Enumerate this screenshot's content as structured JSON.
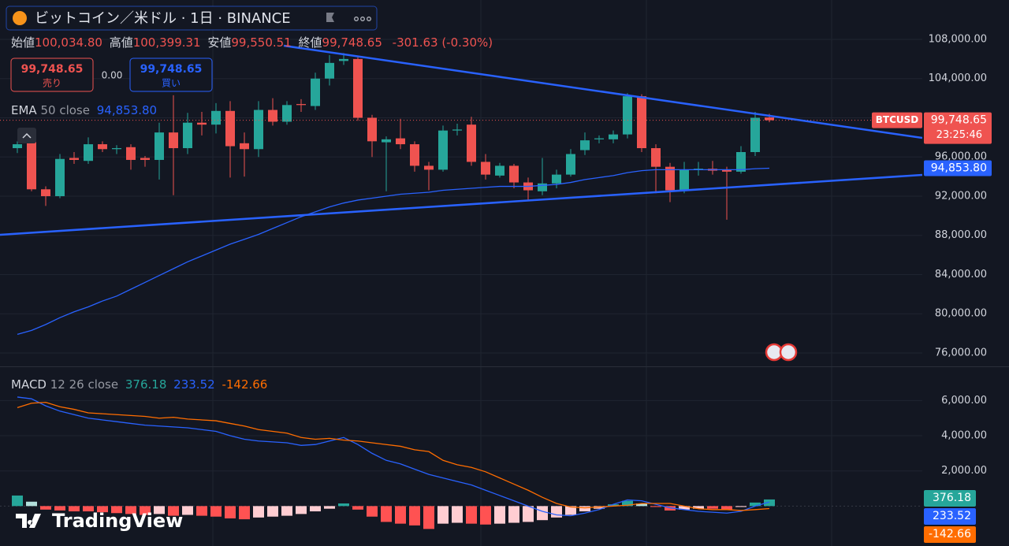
{
  "header": {
    "title": "ビットコイン／米ドル · 1日 · BINANCE",
    "ohlc": [
      {
        "label": "始値",
        "value": "100,034.80"
      },
      {
        "label": "高値",
        "value": "100,399.31"
      },
      {
        "label": "安値",
        "value": "99,550.51"
      },
      {
        "label": "終値",
        "value": "99,748.65"
      }
    ],
    "change": "-301.63 (-0.30%)"
  },
  "trade": {
    "sell_price": "99,748.65",
    "sell_label": "売り",
    "spread": "0.00",
    "buy_price": "99,748.65",
    "buy_label": "買い"
  },
  "branding": "TradingView",
  "chart_data": [
    {
      "type": "candlestick",
      "symbol": "BTCUSD",
      "countdown": "23:25:46",
      "last_label": "99,748.65",
      "color_up": "#26a69a",
      "color_down": "#ef5350",
      "open": [
        96900,
        97550,
        92700,
        92000,
        95900,
        95600,
        97300,
        96800,
        97000,
        95900,
        95700,
        98500,
        96900,
        99500,
        99300,
        100700,
        97400,
        96800,
        100800,
        99600,
        101400,
        101200,
        104000,
        105800,
        106000,
        100000,
        97500,
        97900,
        97300,
        95100,
        94700,
        98700,
        99300,
        95500,
        94100,
        95100,
        93400,
        92500,
        93300,
        94200,
        96700,
        97800,
        97800,
        98300,
        102200,
        96900,
        95000,
        92600,
        94700,
        94800,
        94700,
        94500,
        96500,
        100034.8
      ],
      "high": [
        97600,
        97900,
        93000,
        96300,
        96500,
        98000,
        97600,
        97200,
        97300,
        96100,
        99500,
        102300,
        100500,
        100600,
        101500,
        101700,
        98500,
        101700,
        102000,
        101700,
        101900,
        104600,
        106400,
        106600,
        106300,
        100300,
        98100,
        99900,
        97600,
        95500,
        99200,
        99400,
        100100,
        96300,
        95400,
        95300,
        93900,
        95900,
        94700,
        96800,
        98500,
        98200,
        98700,
        102500,
        102400,
        97300,
        95400,
        95500,
        95500,
        95600,
        95000,
        97100,
        100600,
        100399.31
      ],
      "low": [
        96400,
        92500,
        91000,
        91800,
        95300,
        95300,
        96500,
        96300,
        94700,
        95000,
        93700,
        92100,
        96300,
        98200,
        98400,
        93900,
        94000,
        96000,
        99200,
        99300,
        100600,
        100800,
        103300,
        105400,
        99700,
        96000,
        92500,
        96800,
        94500,
        92600,
        94500,
        98200,
        95100,
        93700,
        93900,
        92800,
        91500,
        92100,
        92800,
        94000,
        96200,
        97400,
        97400,
        97900,
        96500,
        92300,
        91400,
        92300,
        94100,
        94200,
        89600,
        94300,
        96100,
        99550.51
      ],
      "close": [
        97300,
        92700,
        92000,
        95800,
        95700,
        97300,
        96800,
        96900,
        95700,
        95700,
        98500,
        96900,
        99500,
        99300,
        100700,
        97100,
        96800,
        100800,
        99600,
        101300,
        101300,
        104000,
        105600,
        106000,
        100000,
        97600,
        97800,
        97300,
        95100,
        94700,
        98700,
        98800,
        95500,
        94200,
        95100,
        93400,
        92600,
        93300,
        94200,
        96300,
        97700,
        97900,
        98300,
        102200,
        96900,
        95000,
        92600,
        94700,
        94800,
        94600,
        94500,
        96500,
        100000,
        99748.65
      ],
      "series": [
        {
          "name": "EMA",
          "params": "50 close",
          "color": "#2962ff",
          "last_label": "94,853.80",
          "values": [
            77900,
            78300,
            78900,
            79600,
            80200,
            80700,
            81300,
            81800,
            82500,
            83200,
            83900,
            84600,
            85300,
            85900,
            86500,
            87100,
            87600,
            88100,
            88700,
            89300,
            89900,
            90400,
            90900,
            91300,
            91600,
            91800,
            92000,
            92200,
            92300,
            92400,
            92600,
            92700,
            92800,
            92900,
            93000,
            93000,
            93000,
            93100,
            93200,
            93400,
            93700,
            93900,
            94100,
            94400,
            94600,
            94700,
            94700,
            94700,
            94700,
            94700,
            94700,
            94700,
            94800,
            94853.8
          ]
        }
      ],
      "ylim": [
        74630,
        112020
      ],
      "yticks": [
        {
          "value": 76000,
          "label": "76,000.00"
        },
        {
          "value": 80000,
          "label": "80,000.00"
        },
        {
          "value": 84000,
          "label": "84,000.00"
        },
        {
          "value": 88000,
          "label": "88,000.00"
        },
        {
          "value": 92000,
          "label": "92,000.00"
        },
        {
          "value": 96000,
          "label": "96,000.00"
        },
        {
          "value": 100000,
          "label": "100,000.00"
        },
        {
          "value": 104000,
          "label": "104,000.00"
        },
        {
          "value": 108000,
          "label": "108,000.00"
        }
      ],
      "grid": true
    },
    {
      "type": "macd",
      "name": "MACD",
      "params": "12 26 close",
      "histogram": {
        "colors": {
          "pos_rising": "#26a69a",
          "pos_falling": "#b2dfdb",
          "neg_falling": "#ff5252",
          "neg_rising": "#ffcdd2"
        },
        "values": [
          600,
          250,
          -200,
          -250,
          -300,
          -300,
          -350,
          -400,
          -450,
          -500,
          -450,
          -550,
          -500,
          -550,
          -600,
          -700,
          -750,
          -650,
          -600,
          -550,
          -450,
          -300,
          -150,
          150,
          -200,
          -600,
          -900,
          -1000,
          -1100,
          -1300,
          -1000,
          -950,
          -1000,
          -1050,
          -1000,
          -950,
          -900,
          -800,
          -650,
          -500,
          -300,
          -150,
          100,
          300,
          150,
          -50,
          -250,
          -200,
          -150,
          -150,
          -200,
          -50,
          200,
          376.18
        ]
      },
      "series": [
        {
          "color": "#2962ff",
          "values": [
            6200,
            6100,
            5700,
            5400,
            5200,
            5000,
            4900,
            4800,
            4700,
            4600,
            4550,
            4500,
            4450,
            4350,
            4250,
            4000,
            3800,
            3700,
            3650,
            3600,
            3450,
            3500,
            3700,
            3900,
            3500,
            3000,
            2600,
            2400,
            2100,
            1800,
            1600,
            1400,
            1200,
            900,
            600,
            300,
            0,
            -300,
            -500,
            -550,
            -400,
            -200,
            100,
            350,
            300,
            100,
            -100,
            -200,
            -300,
            -350,
            -400,
            -300,
            0,
            233.52
          ]
        },
        {
          "color": "#ff6d00",
          "values": [
            5600,
            5850,
            5900,
            5650,
            5500,
            5300,
            5250,
            5200,
            5150,
            5100,
            5000,
            5050,
            4950,
            4900,
            4850,
            4700,
            4550,
            4350,
            4250,
            4150,
            3900,
            3800,
            3850,
            3750,
            3700,
            3600,
            3500,
            3400,
            3200,
            3100,
            2600,
            2350,
            2200,
            1950,
            1600,
            1250,
            900,
            500,
            150,
            -50,
            -100,
            -50,
            0,
            50,
            150,
            150,
            150,
            0,
            -150,
            -200,
            -200,
            -250,
            -200,
            -142.66
          ]
        }
      ],
      "ylim": [
        -2270,
        7900
      ],
      "yticks": [
        {
          "value": 2000,
          "label": "2,000.00"
        },
        {
          "value": 4000,
          "label": "4,000.00"
        },
        {
          "value": 6000,
          "label": "6,000.00"
        }
      ],
      "grid": true
    }
  ]
}
